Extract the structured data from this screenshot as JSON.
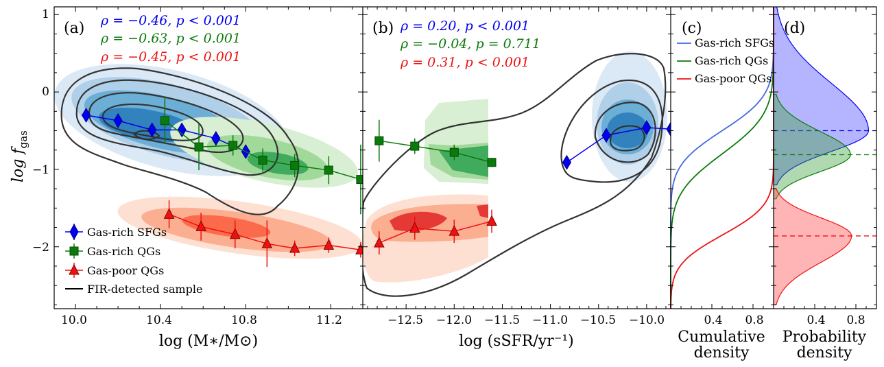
{
  "colors": {
    "sfg": "#0000ee",
    "qg_rich": "#0a7a0a",
    "qg_poor": "#ee1111",
    "sfg_cdf": "#4169e1",
    "contour": "#333333"
  },
  "panel_labels": {
    "a": "(a)",
    "b": "(b)",
    "c": "(c)",
    "d": "(d)"
  },
  "axes": {
    "a": {
      "xlabel": "log (M∗/M⊙)",
      "xticks": [
        "10.0",
        "10.4",
        "10.8",
        "11.2"
      ]
    },
    "b": {
      "xlabel": "log (sSFR/yr⁻¹)",
      "xticks": [
        "−12.5",
        "−12.0",
        "−11.5",
        "−11.0",
        "−10.5",
        "−10.0"
      ]
    },
    "c": {
      "xlabel_line1": "Cumulative",
      "xlabel_line2": "density",
      "xticks": [
        "0.4",
        "0.8"
      ]
    },
    "d": {
      "xlabel_line1": "Probability",
      "xlabel_line2": "density",
      "xticks": [
        "0.4",
        "0.8"
      ]
    },
    "y": {
      "label": "log f",
      "label_sub": "gas",
      "yticks": [
        "−2",
        "−1",
        "0",
        "1"
      ]
    }
  },
  "stats": {
    "a": [
      {
        "rho": "ρ = −0.46, ",
        "p": "p < 0.001"
      },
      {
        "rho": "ρ = −0.63, ",
        "p": "p < 0.001"
      },
      {
        "rho": "ρ = −0.45, ",
        "p": "p < 0.001"
      }
    ],
    "b": [
      {
        "rho": "ρ = 0.20, ",
        "p": "p < 0.001"
      },
      {
        "rho": "ρ = −0.04, ",
        "p": "p = 0.711"
      },
      {
        "rho": "ρ = 0.31, ",
        "p": "p < 0.001"
      }
    ]
  },
  "legend_a": [
    "Gas-rich SFGs",
    "Gas-rich QGs",
    "Gas-poor QGs",
    "FIR-detected sample"
  ],
  "legend_c": [
    "Gas-rich SFGs",
    "Gas-rich QGs",
    "Gas-poor QGs"
  ],
  "chart_data": [
    {
      "type": "line",
      "panel": "a",
      "title": "",
      "xlabel": "log (M*/M⊙)",
      "ylabel": "log f_gas",
      "xlim": [
        9.9,
        11.35
      ],
      "ylim": [
        -2.8,
        1.1
      ],
      "series": [
        {
          "name": "Gas-rich SFGs",
          "marker": "diamond",
          "x": [
            10.05,
            10.2,
            10.36,
            10.5,
            10.66,
            10.8
          ],
          "y": [
            -0.3,
            -0.37,
            -0.49,
            -0.49,
            -0.6,
            -0.77
          ],
          "yerr": [
            0.08,
            0.08,
            0.08,
            0.08,
            0.08,
            0.08
          ]
        },
        {
          "name": "Gas-rich QGs",
          "marker": "square",
          "x": [
            10.42,
            10.58,
            10.74,
            10.88,
            11.03,
            11.19,
            11.34
          ],
          "y": [
            -0.37,
            -0.71,
            -0.69,
            -0.88,
            -0.95,
            -1.01,
            -1.13
          ],
          "yerr": [
            0.3,
            0.3,
            0.13,
            0.15,
            0.15,
            0.18,
            0.45
          ]
        },
        {
          "name": "Gas-poor QGs",
          "marker": "triangle",
          "x": [
            10.44,
            10.59,
            10.75,
            10.9,
            11.03,
            11.19,
            11.34
          ],
          "y": [
            -1.58,
            -1.74,
            -1.84,
            -1.96,
            -2.02,
            -1.98,
            -2.04
          ],
          "yerr": [
            0.18,
            0.18,
            0.18,
            0.3,
            0.1,
            0.1,
            0.1
          ]
        }
      ]
    },
    {
      "type": "line",
      "panel": "b",
      "title": "",
      "xlabel": "log (sSFR/yr⁻¹)",
      "ylabel": "log f_gas",
      "xlim": [
        -12.95,
        -9.75
      ],
      "ylim": [
        -2.8,
        1.1
      ],
      "series": [
        {
          "name": "Gas-rich SFGs",
          "marker": "diamond",
          "x": [
            -10.83,
            -10.42,
            -10.0,
            -9.75
          ],
          "y": [
            -0.91,
            -0.56,
            -0.46,
            -0.48
          ],
          "yerr": [
            0.08,
            0.08,
            0.08,
            0.08
          ]
        },
        {
          "name": "Gas-rich QGs",
          "marker": "square",
          "x": [
            -12.78,
            -12.41,
            -12.0,
            -11.61
          ],
          "y": [
            -0.63,
            -0.7,
            -0.78,
            -0.91
          ],
          "yerr": [
            0.27,
            0.1,
            0.1,
            0.06
          ]
        },
        {
          "name": "Gas-poor QGs",
          "marker": "triangle",
          "x": [
            -12.78,
            -12.41,
            -12.0,
            -11.61
          ],
          "y": [
            -1.95,
            -1.76,
            -1.8,
            -1.67
          ],
          "yerr": [
            0.15,
            0.15,
            0.15,
            0.15
          ]
        }
      ]
    },
    {
      "type": "line",
      "panel": "c",
      "xlabel": "Cumulative density",
      "xlim": [
        0,
        1
      ],
      "ylim": [
        -2.8,
        1.1
      ],
      "series": [
        {
          "name": "Gas-rich SFGs",
          "cdf_mean": -0.5,
          "cdf_sigma": 0.35
        },
        {
          "name": "Gas-rich QGs",
          "cdf_mean": -0.8,
          "cdf_sigma": 0.4
        },
        {
          "name": "Gas-poor QGs",
          "cdf_mean": -1.85,
          "cdf_sigma": 0.3
        }
      ]
    },
    {
      "type": "area",
      "panel": "d",
      "xlabel": "Probability density",
      "xlim": [
        0,
        1.03
      ],
      "ylim": [
        -2.8,
        1.1
      ],
      "series": [
        {
          "name": "Gas-rich SFGs",
          "median": -0.5,
          "peak": 0.95,
          "range": [
            -1.2,
            1.1
          ]
        },
        {
          "name": "Gas-rich QGs",
          "median": -0.81,
          "peak": 0.77,
          "range": [
            -1.38,
            -0.03
          ]
        },
        {
          "name": "Gas-poor QGs",
          "median": -1.86,
          "peak": 0.78,
          "range": [
            -2.75,
            -1.25
          ]
        }
      ]
    }
  ]
}
